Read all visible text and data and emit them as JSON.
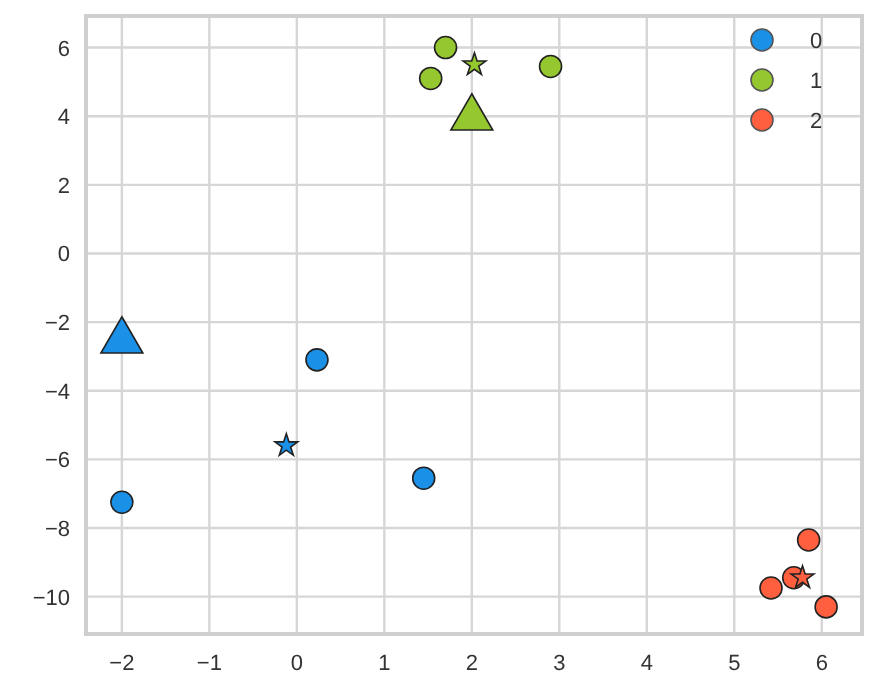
{
  "chart_data": {
    "type": "scatter",
    "xlim": [
      -2.41,
      6.46
    ],
    "ylim": [
      -11.09,
      6.92
    ],
    "xticks": [
      -2,
      -1,
      0,
      1,
      2,
      3,
      4,
      5,
      6
    ],
    "yticks": [
      -10,
      -8,
      -6,
      -4,
      -2,
      0,
      2,
      4,
      6
    ],
    "grid": true,
    "legend": "top right",
    "series": [
      {
        "name": "0",
        "color": "#1a90e6",
        "marker": "circle",
        "x": [
          -2,
          0.23,
          1.45
        ],
        "values": [
          -7.25,
          -3.1,
          -6.55
        ]
      },
      {
        "name": "1",
        "color": "#95c72f",
        "marker": "circle",
        "x": [
          1.7,
          1.53,
          2.9
        ],
        "values": [
          6.0,
          5.1,
          5.45
        ]
      },
      {
        "name": "2",
        "color": "#ff5f3f",
        "marker": "circle",
        "x": [
          5.85,
          5.42,
          5.68,
          6.05
        ],
        "values": [
          -8.35,
          -9.75,
          -9.45,
          -10.3
        ]
      },
      {
        "color": "#1a90e6",
        "marker": "star",
        "x": [
          -0.12
        ],
        "values": [
          -5.6
        ]
      },
      {
        "color": "#95c72f",
        "marker": "star",
        "x": [
          2.03
        ],
        "values": [
          5.5
        ]
      },
      {
        "color": "#ff5f3f",
        "marker": "star",
        "x": [
          5.78
        ],
        "values": [
          -9.45
        ]
      },
      {
        "color": "#1a90e6",
        "marker": "triangle",
        "x": [
          -2
        ],
        "values": [
          -2.55
        ]
      },
      {
        "color": "#95c72f",
        "marker": "triangle",
        "x": [
          2
        ],
        "values": [
          3.95
        ]
      }
    ]
  }
}
